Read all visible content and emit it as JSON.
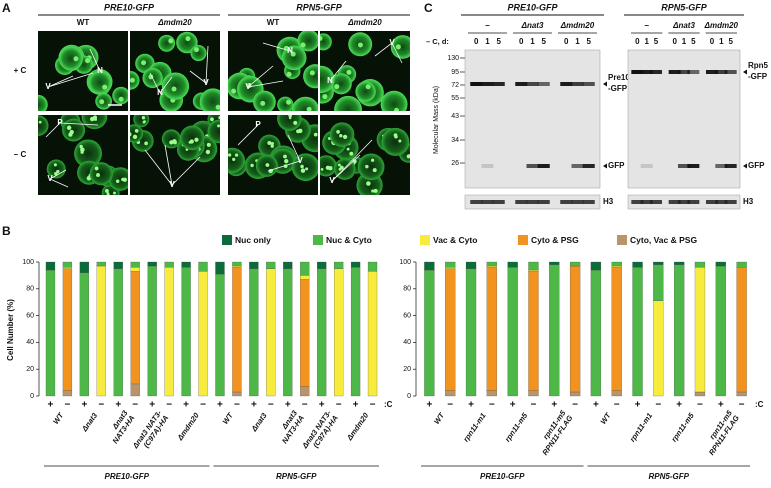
{
  "panel_a": {
    "letter": "A",
    "groups": [
      "PRE10-GFP",
      "RPN5-GFP"
    ],
    "columns": [
      "WT",
      "Δmdm20",
      "WT",
      "Δmdm20"
    ],
    "rows": [
      "+ C",
      "– C"
    ],
    "images": [
      {
        "labels": [
          "V",
          "N"
        ]
      },
      {
        "labels": [
          "N",
          "V"
        ]
      },
      {
        "labels": [
          "N",
          "V"
        ]
      },
      {
        "labels": [
          "N",
          "V"
        ]
      },
      {
        "labels": [
          "P",
          "V"
        ]
      },
      {
        "labels": [
          "V"
        ]
      },
      {
        "labels": [
          "P",
          "V"
        ]
      },
      {
        "labels": [
          "V"
        ]
      }
    ]
  },
  "panel_c": {
    "letter": "C",
    "condition": "– C, d:",
    "axis_label": "Molecular Mass (kDa)",
    "markers": [
      130,
      95,
      72,
      55,
      43,
      34,
      26
    ],
    "blots": [
      {
        "title": "PRE10-GFP",
        "strains": [
          "–",
          "Δnat3",
          "Δmdm20"
        ],
        "days": [
          0,
          1,
          5
        ],
        "band_labels": [
          "Pre10",
          "-GFP",
          "GFP",
          "H3"
        ]
      },
      {
        "title": "RPN5-GFP",
        "strains": [
          "–",
          "Δnat3",
          "Δmdm20"
        ],
        "days": [
          0,
          1,
          5
        ],
        "band_labels": [
          "Rpn5",
          "-GFP",
          "GFP",
          "H3"
        ]
      }
    ]
  },
  "panel_b": {
    "letter": "B",
    "legend": [
      {
        "name": "Nuc only",
        "color": "#0b6b3a"
      },
      {
        "name": "Nuc & Cyto",
        "color": "#4db848"
      },
      {
        "name": "Vac & Cyto",
        "color": "#f7ec3d"
      },
      {
        "name": "Cyto & PSG",
        "color": "#f2921f"
      },
      {
        "name": "Cyto, Vac & PSG",
        "color": "#b8956a"
      }
    ],
    "y_label": "Cell Number (%)",
    "ylim": [
      0,
      100
    ],
    "yticks": [
      0,
      20,
      40,
      60,
      80,
      100
    ],
    "signs": [
      "+",
      "−"
    ],
    "condition": ":C",
    "charts": [
      {
        "groups": [
          "PRE10-GFP",
          "RPN5-GFP"
        ],
        "strains": [
          [
            "WT"
          ],
          [
            "Δnat3"
          ],
          [
            "Δnat3",
            "NAT3-HA"
          ],
          [
            "Δnat3 NAT3-",
            "(C97A)-HA"
          ],
          [
            "Δmdm20"
          ]
        ],
        "series": [
          {
            "values": [
              6,
              0,
              8,
              0,
              5,
              0,
              3,
              0,
              4,
              0,
              9,
              0,
              5,
              0,
              5,
              0,
              5,
              0,
              4,
              0
            ]
          },
          {
            "values": [
              94,
              4,
              92,
              3,
              95,
              4,
              97,
              4,
              96,
              7,
              91,
              3,
              95,
              5,
              95,
              10,
              95,
              5,
              96,
              7
            ]
          },
          {
            "values": [
              0,
              1,
              0,
              97,
              0,
              3,
              0,
              96,
              0,
              93,
              0,
              1,
              0,
              95,
              0,
              3,
              0,
              95,
              0,
              93
            ]
          },
          {
            "values": [
              0,
              91,
              0,
              0,
              0,
              84,
              0,
              0,
              0,
              0,
              0,
              93,
              0,
              0,
              0,
              80,
              0,
              0,
              0,
              0
            ]
          },
          {
            "values": [
              0,
              4,
              0,
              0,
              0,
              9,
              0,
              0,
              0,
              0,
              0,
              3,
              0,
              0,
              0,
              7,
              0,
              0,
              0,
              0
            ]
          }
        ]
      },
      {
        "groups": [
          "PRE10-GFP",
          "RPN5-GFP"
        ],
        "strains": [
          [
            "WT"
          ],
          [
            "rpn11-m1"
          ],
          [
            "rpn11-m5"
          ],
          [
            "rpn11-m5",
            "RPN11-FLAG"
          ]
        ],
        "series": [
          {
            "values": [
              6,
              0,
              5,
              0,
              4,
              0,
              2,
              0,
              6,
              0,
              4,
              2,
              2,
              0,
              3,
              0
            ]
          },
          {
            "values": [
              94,
              4,
              95,
              3,
              96,
              6,
              98,
              3,
              94,
              3,
              96,
              27,
              98,
              4,
              97,
              4
            ]
          },
          {
            "values": [
              0,
              1,
              0,
              1,
              0,
              1,
              0,
              0,
              0,
              1,
              0,
              71,
              0,
              93,
              0,
              0
            ]
          },
          {
            "values": [
              0,
              91,
              0,
              92,
              0,
              89,
              0,
              94,
              0,
              92,
              0,
              0,
              0,
              0,
              0,
              93
            ]
          },
          {
            "values": [
              0,
              4,
              0,
              4,
              0,
              4,
              0,
              3,
              0,
              4,
              0,
              0,
              0,
              3,
              0,
              3
            ]
          }
        ]
      }
    ]
  }
}
